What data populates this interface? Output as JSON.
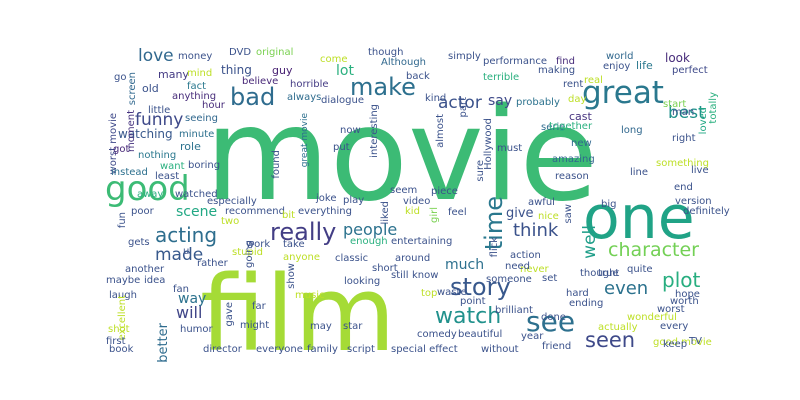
{
  "words": [
    {
      "text": "movie",
      "color": "#3cbb75"
    },
    {
      "text": "film",
      "color": "#a5db36"
    },
    {
      "text": "one",
      "color": "#20a386"
    },
    {
      "text": "good",
      "color": "#3cbb75"
    },
    {
      "text": "great",
      "color": "#2a788e"
    },
    {
      "text": "see",
      "color": "#2d708e"
    },
    {
      "text": "story",
      "color": "#38588c"
    },
    {
      "text": "really",
      "color": "#433e85"
    },
    {
      "text": "time",
      "color": "#2a788e"
    },
    {
      "text": "bad",
      "color": "#2f6c8e"
    },
    {
      "text": "make",
      "color": "#2d708e"
    },
    {
      "text": "watch",
      "color": "#21918c"
    },
    {
      "text": "seen",
      "color": "#3e4989"
    },
    {
      "text": "character",
      "color": "#73d055"
    },
    {
      "text": "acting",
      "color": "#2e6e8e"
    },
    {
      "text": "plot",
      "color": "#28ae80"
    },
    {
      "text": "even",
      "color": "#2c728e"
    },
    {
      "text": "made",
      "color": "#38598c"
    },
    {
      "text": "think",
      "color": "#3b528b"
    },
    {
      "text": "people",
      "color": "#2c728e"
    },
    {
      "text": "well",
      "color": "#1f9e89"
    },
    {
      "text": "best",
      "color": "#21918c"
    },
    {
      "text": "funny",
      "color": "#3e4989"
    },
    {
      "text": "love",
      "color": "#31688e"
    },
    {
      "text": "actor",
      "color": "#3b528b"
    },
    {
      "text": "will",
      "color": "#404688"
    },
    {
      "text": "much",
      "color": "#2d708e"
    },
    {
      "text": "way",
      "color": "#2c728e"
    },
    {
      "text": "scene",
      "color": "#22a884"
    },
    {
      "text": "say",
      "color": "#3e4989"
    },
    {
      "text": "lot",
      "color": "#2ab07f"
    },
    {
      "text": "give",
      "color": "#3b528b"
    },
    {
      "text": "better",
      "color": "#2f6c8e"
    },
    {
      "text": "watching",
      "color": "#38588c"
    },
    {
      "text": "thing",
      "color": "#3b528b"
    },
    {
      "text": "look",
      "color": "#472c7a"
    },
    {
      "text": "cast",
      "color": "#46337f"
    },
    {
      "text": "role",
      "color": "#2c728e"
    },
    {
      "text": "life",
      "color": "#2a788e"
    },
    {
      "text": "old",
      "color": "#3b528b"
    },
    {
      "text": "many",
      "color": "#443b84"
    },
    {
      "text": "guy",
      "color": "#482173"
    },
    {
      "text": "DVD",
      "color": "#3b528b"
    },
    {
      "text": "original",
      "color": "#7ad151"
    },
    {
      "text": "money",
      "color": "#3b528b"
    },
    {
      "text": "come",
      "color": "#bddf26"
    },
    {
      "text": "though",
      "color": "#3b528b"
    },
    {
      "text": "Although",
      "color": "#31688e"
    },
    {
      "text": "simply",
      "color": "#3b528b"
    },
    {
      "text": "performance",
      "color": "#3b528b"
    },
    {
      "text": "find",
      "color": "#472c7a"
    },
    {
      "text": "world",
      "color": "#31688e"
    },
    {
      "text": "enjoy",
      "color": "#3b528b"
    },
    {
      "text": "perfect",
      "color": "#3e4989"
    },
    {
      "text": "go",
      "color": "#3b528b"
    },
    {
      "text": "mind",
      "color": "#bddf26"
    },
    {
      "text": "fact",
      "color": "#2a788e"
    },
    {
      "text": "believe",
      "color": "#482878"
    },
    {
      "text": "horrible",
      "color": "#443b84"
    },
    {
      "text": "back",
      "color": "#3b528b"
    },
    {
      "text": "terrible",
      "color": "#2ab07f"
    },
    {
      "text": "making",
      "color": "#3b528b"
    },
    {
      "text": "real",
      "color": "#bddf26"
    },
    {
      "text": "screen",
      "color": "#31688e"
    },
    {
      "text": "moment",
      "color": "#46337f"
    },
    {
      "text": "anything",
      "color": "#472c7a"
    },
    {
      "text": "always",
      "color": "#2f6c8e"
    },
    {
      "text": "dialogue",
      "color": "#3b528b"
    },
    {
      "text": "kind",
      "color": "#3b528b"
    },
    {
      "text": "part",
      "color": "#3b528b"
    },
    {
      "text": "probably",
      "color": "#2c728e"
    },
    {
      "text": "start",
      "color": "#7ad151"
    },
    {
      "text": "man",
      "color": "#3b528b"
    },
    {
      "text": "loved",
      "color": "#22a884"
    },
    {
      "text": "totally",
      "color": "#2ab07f"
    },
    {
      "text": "hour",
      "color": "#472c7a"
    },
    {
      "text": "little",
      "color": "#3b528b"
    },
    {
      "text": "seeing",
      "color": "#31688e"
    },
    {
      "text": "worst movie",
      "color": "#3e4989"
    },
    {
      "text": "great movie",
      "color": "#2d708e"
    },
    {
      "text": "interesting",
      "color": "#3b528b"
    },
    {
      "text": "almost",
      "color": "#3b528b"
    },
    {
      "text": "Hollywood",
      "color": "#3b528b"
    },
    {
      "text": "serie",
      "color": "#2f6c8e"
    },
    {
      "text": "together",
      "color": "#2ab07f"
    },
    {
      "text": "long",
      "color": "#31688e"
    },
    {
      "text": "right",
      "color": "#3b528b"
    },
    {
      "text": "minute",
      "color": "#2d708e"
    },
    {
      "text": "got",
      "color": "#482878"
    },
    {
      "text": "nothing",
      "color": "#2a788e"
    },
    {
      "text": "want",
      "color": "#2ab07f"
    },
    {
      "text": "now",
      "color": "#3b528b"
    },
    {
      "text": "put",
      "color": "#3b528b"
    },
    {
      "text": "must",
      "color": "#3b528b"
    },
    {
      "text": "new",
      "color": "#31688e"
    },
    {
      "text": "amazing",
      "color": "#31688e"
    },
    {
      "text": "something",
      "color": "#bddf26"
    },
    {
      "text": "line",
      "color": "#3b528b"
    },
    {
      "text": "live",
      "color": "#3b528b"
    },
    {
      "text": "instead",
      "color": "#2d708e"
    },
    {
      "text": "least",
      "color": "#3b528b"
    },
    {
      "text": "boring",
      "color": "#3b528b"
    },
    {
      "text": "found",
      "color": "#3b528b"
    },
    {
      "text": "sure",
      "color": "#3b528b"
    },
    {
      "text": "reason",
      "color": "#3b528b"
    },
    {
      "text": "end",
      "color": "#3b528b"
    },
    {
      "text": "away",
      "color": "#2ab07f"
    },
    {
      "text": "watched",
      "color": "#3b528b"
    },
    {
      "text": "joke",
      "color": "#3b528b"
    },
    {
      "text": "seem",
      "color": "#3b528b"
    },
    {
      "text": "version",
      "color": "#3b528b"
    },
    {
      "text": "especially",
      "color": "#3b528b"
    },
    {
      "text": "play",
      "color": "#3b528b"
    },
    {
      "text": "video",
      "color": "#3b528b"
    },
    {
      "text": "piece",
      "color": "#3b528b"
    },
    {
      "text": "definitely",
      "color": "#3b528b"
    },
    {
      "text": "recommend",
      "color": "#3b528b"
    },
    {
      "text": "everything",
      "color": "#3b528b"
    },
    {
      "text": "liked",
      "color": "#3b528b"
    },
    {
      "text": "kid",
      "color": "#bddf26"
    },
    {
      "text": "girl",
      "color": "#7ad151"
    },
    {
      "text": "feel",
      "color": "#3b528b"
    },
    {
      "text": "awful",
      "color": "#3b528b"
    },
    {
      "text": "nice",
      "color": "#bddf26"
    },
    {
      "text": "saw",
      "color": "#3b528b"
    },
    {
      "text": "big",
      "color": "#3b528b"
    },
    {
      "text": "fun",
      "color": "#3b528b"
    },
    {
      "text": "poor",
      "color": "#3b528b"
    },
    {
      "text": "two",
      "color": "#bddf26"
    },
    {
      "text": "bit",
      "color": "#bddf26"
    },
    {
      "text": "gets",
      "color": "#3b528b"
    },
    {
      "text": "stupid",
      "color": "#bddf26"
    },
    {
      "text": "work",
      "color": "#3b528b"
    },
    {
      "text": "take",
      "color": "#3b528b"
    },
    {
      "text": "enough",
      "color": "#2ab07f"
    },
    {
      "text": "entertaining",
      "color": "#3b528b"
    },
    {
      "text": "flick",
      "color": "#3b528b"
    },
    {
      "text": "action",
      "color": "#3b528b"
    },
    {
      "text": "quite",
      "color": "#3b528b"
    },
    {
      "text": "rather",
      "color": "#3b528b"
    },
    {
      "text": "going",
      "color": "#3b528b"
    },
    {
      "text": "anyone",
      "color": "#bddf26"
    },
    {
      "text": "classic",
      "color": "#3b528b"
    },
    {
      "text": "around",
      "color": "#3b528b"
    },
    {
      "text": "u",
      "color": "#3b528b"
    },
    {
      "text": "another",
      "color": "#3b528b"
    },
    {
      "text": "maybe",
      "color": "#3b528b"
    },
    {
      "text": "idea",
      "color": "#3b528b"
    },
    {
      "text": "laugh",
      "color": "#3b528b"
    },
    {
      "text": "fan",
      "color": "#3b528b"
    },
    {
      "text": "short",
      "color": "#3b528b"
    },
    {
      "text": "looking",
      "color": "#3b528b"
    },
    {
      "text": "still",
      "color": "#3b528b"
    },
    {
      "text": "know",
      "color": "#3b528b"
    },
    {
      "text": "someone",
      "color": "#3b528b"
    },
    {
      "text": "never",
      "color": "#bddf26"
    },
    {
      "text": "set",
      "color": "#3b528b"
    },
    {
      "text": "thought",
      "color": "#3b528b"
    },
    {
      "text": "true",
      "color": "#3b528b"
    },
    {
      "text": "hope",
      "color": "#3b528b"
    },
    {
      "text": "show",
      "color": "#3b528b"
    },
    {
      "text": "far",
      "color": "#3b528b"
    },
    {
      "text": "music",
      "color": "#bddf26"
    },
    {
      "text": "top",
      "color": "#bddf26"
    },
    {
      "text": "waste",
      "color": "#3b528b"
    },
    {
      "text": "brilliant",
      "color": "#3b528b"
    },
    {
      "text": "hard",
      "color": "#3b528b"
    },
    {
      "text": "ending",
      "color": "#3b528b"
    },
    {
      "text": "worth",
      "color": "#3b528b"
    },
    {
      "text": "worst",
      "color": "#3b528b"
    },
    {
      "text": "excellent",
      "color": "#bddf26"
    },
    {
      "text": "gave",
      "color": "#3b528b"
    },
    {
      "text": "humor",
      "color": "#3b528b"
    },
    {
      "text": "might",
      "color": "#3b528b"
    },
    {
      "text": "may",
      "color": "#3b528b"
    },
    {
      "text": "star",
      "color": "#3b528b"
    },
    {
      "text": "point",
      "color": "#3b528b"
    },
    {
      "text": "beautiful",
      "color": "#3b528b"
    },
    {
      "text": "comedy",
      "color": "#3b528b"
    },
    {
      "text": "done",
      "color": "#3b528b"
    },
    {
      "text": "wonderful",
      "color": "#bddf26"
    },
    {
      "text": "actually",
      "color": "#bddf26"
    },
    {
      "text": "every",
      "color": "#3b528b"
    },
    {
      "text": "good movie",
      "color": "#bddf26"
    },
    {
      "text": "shot",
      "color": "#bddf26"
    },
    {
      "text": "first",
      "color": "#3b528b"
    },
    {
      "text": "director",
      "color": "#3b528b"
    },
    {
      "text": "everyone",
      "color": "#3b528b"
    },
    {
      "text": "family",
      "color": "#3b528b"
    },
    {
      "text": "script",
      "color": "#3b528b"
    },
    {
      "text": "special effect",
      "color": "#3b528b"
    },
    {
      "text": "year",
      "color": "#3b528b"
    },
    {
      "text": "without",
      "color": "#3b528b"
    },
    {
      "text": "friend",
      "color": "#3b528b"
    },
    {
      "text": "keep",
      "color": "#3b528b"
    },
    {
      "text": "TV",
      "color": "#3b528b"
    },
    {
      "text": "book",
      "color": "#3b528b"
    },
    {
      "text": "need",
      "color": "#3b528b"
    },
    {
      "text": "rent",
      "color": "#3b528b"
    },
    {
      "text": "day",
      "color": "#bddf26"
    }
  ]
}
